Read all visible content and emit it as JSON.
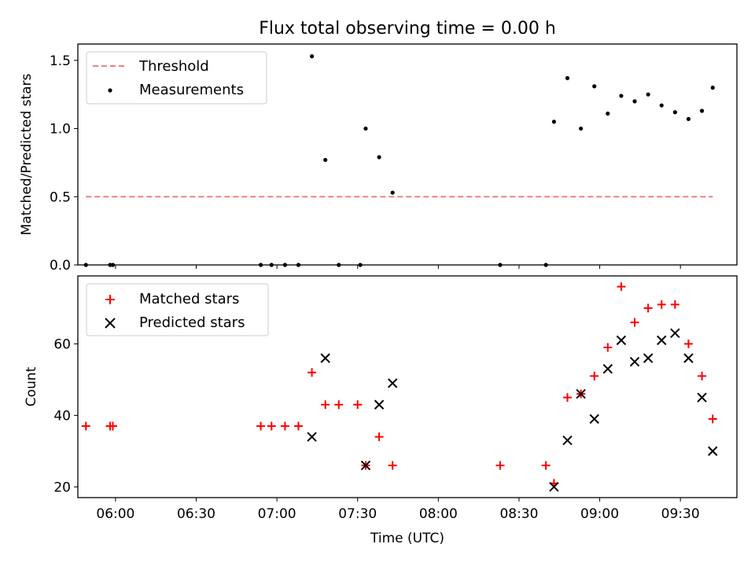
{
  "chart_data": [
    {
      "type": "scatter",
      "title": "Flux total observing time = 0.00 h",
      "ylabel": "Matched/Predicted stars",
      "xlabel": "",
      "xlim": [
        "05:46",
        "09:51"
      ],
      "ylim": [
        0,
        1.62
      ],
      "yticks": [
        0.0,
        0.5,
        1.0,
        1.5
      ],
      "ytick_labels": [
        "0.0",
        "0.5",
        "1.0",
        "1.5"
      ],
      "legend_position": "top-left",
      "threshold": {
        "name": "Threshold",
        "value": 0.5,
        "x": [
          "05:49",
          "09:42"
        ],
        "color": "#f08080"
      },
      "series": [
        {
          "name": "Measurements",
          "color": "#000000",
          "points": [
            [
              "05:49",
              0
            ],
            [
              "05:58",
              0
            ],
            [
              "05:59",
              0
            ],
            [
              "06:54",
              0
            ],
            [
              "06:58",
              0
            ],
            [
              "07:03",
              0
            ],
            [
              "07:08",
              0
            ],
            [
              "07:13",
              1.53
            ],
            [
              "07:18",
              0.77
            ],
            [
              "07:23",
              0
            ],
            [
              "07:31",
              0
            ],
            [
              "07:33",
              1.0
            ],
            [
              "07:38",
              0.79
            ],
            [
              "07:43",
              0.53
            ],
            [
              "08:23",
              0
            ],
            [
              "08:40",
              0
            ],
            [
              "08:43",
              1.05
            ],
            [
              "08:48",
              1.37
            ],
            [
              "08:53",
              1.0
            ],
            [
              "08:58",
              1.31
            ],
            [
              "09:03",
              1.11
            ],
            [
              "09:08",
              1.24
            ],
            [
              "09:13",
              1.2
            ],
            [
              "09:18",
              1.25
            ],
            [
              "09:23",
              1.17
            ],
            [
              "09:28",
              1.12
            ],
            [
              "09:33",
              1.07
            ],
            [
              "09:38",
              1.13
            ],
            [
              "09:42",
              1.3
            ]
          ]
        }
      ]
    },
    {
      "type": "scatter",
      "title": "",
      "xlabel": "Time (UTC)",
      "ylabel": "Count",
      "xlim": [
        "05:46",
        "09:51"
      ],
      "xticks": [
        "06:00",
        "06:30",
        "07:00",
        "07:30",
        "08:00",
        "08:30",
        "09:00",
        "09:30"
      ],
      "ylim": [
        17,
        79
      ],
      "yticks": [
        20,
        40,
        60
      ],
      "legend_position": "top-left",
      "series": [
        {
          "name": "Matched stars",
          "color": "#ff0000",
          "marker": "plus",
          "points": [
            [
              "05:49",
              37
            ],
            [
              "05:58",
              37
            ],
            [
              "05:59",
              37
            ],
            [
              "06:54",
              37
            ],
            [
              "06:58",
              37
            ],
            [
              "07:03",
              37
            ],
            [
              "07:08",
              37
            ],
            [
              "07:13",
              52
            ],
            [
              "07:18",
              43
            ],
            [
              "07:23",
              43
            ],
            [
              "07:30",
              43
            ],
            [
              "07:33",
              26
            ],
            [
              "07:38",
              34
            ],
            [
              "07:43",
              26
            ],
            [
              "08:23",
              26
            ],
            [
              "08:40",
              26
            ],
            [
              "08:43",
              21
            ],
            [
              "08:48",
              45
            ],
            [
              "08:53",
              46
            ],
            [
              "08:58",
              51
            ],
            [
              "09:03",
              59
            ],
            [
              "09:08",
              76
            ],
            [
              "09:13",
              66
            ],
            [
              "09:18",
              70
            ],
            [
              "09:23",
              71
            ],
            [
              "09:28",
              71
            ],
            [
              "09:33",
              60
            ],
            [
              "09:38",
              51
            ],
            [
              "09:42",
              39
            ]
          ]
        },
        {
          "name": "Predicted stars",
          "color": "#000000",
          "marker": "x",
          "points": [
            [
              "07:13",
              34
            ],
            [
              "07:18",
              56
            ],
            [
              "07:33",
              26
            ],
            [
              "07:38",
              43
            ],
            [
              "07:43",
              49
            ],
            [
              "08:43",
              20
            ],
            [
              "08:48",
              33
            ],
            [
              "08:53",
              46
            ],
            [
              "08:58",
              39
            ],
            [
              "09:03",
              53
            ],
            [
              "09:08",
              61
            ],
            [
              "09:13",
              55
            ],
            [
              "09:18",
              56
            ],
            [
              "09:23",
              61
            ],
            [
              "09:28",
              63
            ],
            [
              "09:33",
              56
            ],
            [
              "09:38",
              45
            ],
            [
              "09:42",
              30
            ]
          ]
        }
      ]
    }
  ]
}
